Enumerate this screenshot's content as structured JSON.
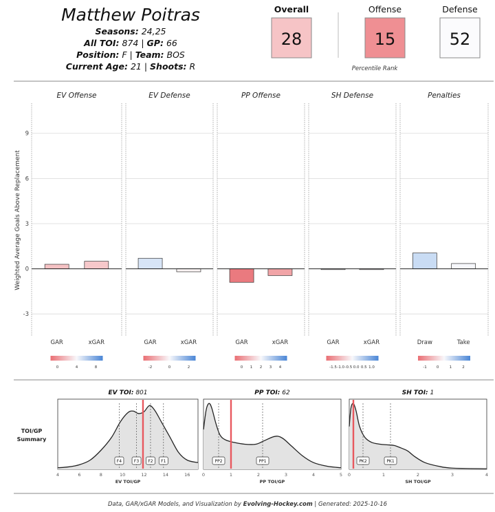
{
  "header": {
    "player_name": "Matthew Poitras",
    "lines": [
      [
        {
          "label": "Seasons:",
          "value": " 24,25"
        }
      ],
      [
        {
          "label": "All TOI:",
          "value": " 874 | "
        },
        {
          "label": "GP:",
          "value": " 66"
        }
      ],
      [
        {
          "label": "Position:",
          "value": " F | "
        },
        {
          "label": "Team:",
          "value": " BOS"
        }
      ],
      [
        {
          "label": "Current Age:",
          "value": " 21 | "
        },
        {
          "label": "Shoots:",
          "value": " R"
        }
      ]
    ]
  },
  "percentiles": {
    "caption": "Percentile Rank",
    "boxes": [
      {
        "label": "Overall",
        "value": "28",
        "bold": true,
        "fill": "#f6c4c6"
      },
      {
        "label": "Offense",
        "value": "15",
        "bold": false,
        "fill": "#ef8f93"
      },
      {
        "label": "Defense",
        "value": "52",
        "bold": false,
        "fill": "#fbfbfd"
      }
    ]
  },
  "chart_data": [
    {
      "type": "bar",
      "ylabel": "Weighted Average Goals Above Replacement",
      "ylim": [
        -4.5,
        11
      ],
      "yticks": [
        -3,
        0,
        3,
        6,
        9
      ],
      "panels": [
        {
          "title": "EV Offense",
          "categories": [
            "GAR",
            "xGAR"
          ],
          "values": [
            0.3,
            0.5
          ],
          "legend": {
            "ticks": [
              "0",
              "4",
              "8"
            ]
          }
        },
        {
          "title": "EV Defense",
          "categories": [
            "GAR",
            "xGAR"
          ],
          "values": [
            0.7,
            -0.2
          ],
          "legend": {
            "ticks": [
              "-2",
              "0",
              "2"
            ]
          }
        },
        {
          "title": "PP Offense",
          "categories": [
            "GAR",
            "xGAR"
          ],
          "values": [
            -0.9,
            -0.45
          ],
          "legend": {
            "ticks": [
              "0",
              "1",
              "2",
              "3",
              "4"
            ]
          }
        },
        {
          "title": "SH Defense",
          "categories": [
            "GAR",
            "xGAR"
          ],
          "values": [
            -0.02,
            -0.02
          ],
          "legend": {
            "ticks": [
              "-1.5",
              "-1.0",
              "-0.5",
              "0.0",
              "0.5",
              "1.0"
            ]
          }
        },
        {
          "title": "Penalties",
          "categories": [
            "Draw",
            "Take"
          ],
          "values": [
            1.05,
            0.35
          ],
          "legend": {
            "ticks": [
              "-1",
              "0",
              "1",
              "2"
            ]
          }
        }
      ]
    },
    {
      "type": "area",
      "side_title": [
        "TOI/GP",
        "Summary"
      ],
      "panels": [
        {
          "title_bold": "EV TOI:",
          "title_rest": " 801",
          "xlabel": "EV TOI/GP",
          "xlim": [
            4,
            17
          ],
          "xticks": [
            4,
            6,
            8,
            10,
            12,
            14,
            16
          ],
          "player_value": 11.9,
          "markers": [
            {
              "label": "F4",
              "x": 9.7
            },
            {
              "label": "F3",
              "x": 11.3
            },
            {
              "label": "F2",
              "x": 12.6
            },
            {
              "label": "F1",
              "x": 13.8
            }
          ],
          "density": [
            [
              4,
              0.05
            ],
            [
              5,
              0.08
            ],
            [
              6,
              0.15
            ],
            [
              7,
              0.3
            ],
            [
              8,
              0.62
            ],
            [
              9,
              1.05
            ],
            [
              9.8,
              1.55
            ],
            [
              10.5,
              1.85
            ],
            [
              11,
              1.9
            ],
            [
              11.5,
              1.82
            ],
            [
              12,
              1.88
            ],
            [
              12.5,
              2.08
            ],
            [
              13,
              1.92
            ],
            [
              13.6,
              1.55
            ],
            [
              14.4,
              1.05
            ],
            [
              15.2,
              0.55
            ],
            [
              16,
              0.3
            ],
            [
              17,
              0.22
            ]
          ]
        },
        {
          "title_bold": "PP TOI:",
          "title_rest": " 62",
          "xlabel": "PP TOI/GP",
          "xlim": [
            0,
            5
          ],
          "xticks": [
            0,
            1,
            2,
            3,
            4,
            5
          ],
          "player_value": 1.0,
          "markers": [
            {
              "label": "PP2",
              "x": 0.55
            },
            {
              "label": "PP1",
              "x": 2.15
            }
          ],
          "density": [
            [
              0,
              1.3
            ],
            [
              0.1,
              1.95
            ],
            [
              0.2,
              2.15
            ],
            [
              0.3,
              2.0
            ],
            [
              0.45,
              1.5
            ],
            [
              0.6,
              1.12
            ],
            [
              0.8,
              0.96
            ],
            [
              1.1,
              0.88
            ],
            [
              1.5,
              0.82
            ],
            [
              1.9,
              0.82
            ],
            [
              2.2,
              0.93
            ],
            [
              2.5,
              1.05
            ],
            [
              2.7,
              1.08
            ],
            [
              2.9,
              1.0
            ],
            [
              3.2,
              0.76
            ],
            [
              3.6,
              0.44
            ],
            [
              4.0,
              0.22
            ],
            [
              4.5,
              0.1
            ],
            [
              5,
              0.05
            ]
          ]
        },
        {
          "title_bold": "SH TOI:",
          "title_rest": " 1",
          "xlabel": "SH TOI/GP",
          "xlim": [
            0,
            4
          ],
          "xticks": [
            0,
            1,
            2,
            3,
            4
          ],
          "player_value": 0.12,
          "markers": [
            {
              "label": "PK2",
              "x": 0.4
            },
            {
              "label": "PK1",
              "x": 1.2
            }
          ],
          "density": [
            [
              0,
              1.4
            ],
            [
              0.05,
              2.0
            ],
            [
              0.12,
              2.15
            ],
            [
              0.2,
              1.9
            ],
            [
              0.3,
              1.4
            ],
            [
              0.45,
              1.05
            ],
            [
              0.65,
              0.88
            ],
            [
              0.9,
              0.82
            ],
            [
              1.1,
              0.8
            ],
            [
              1.3,
              0.78
            ],
            [
              1.5,
              0.7
            ],
            [
              1.7,
              0.6
            ],
            [
              1.9,
              0.42
            ],
            [
              2.2,
              0.22
            ],
            [
              2.6,
              0.1
            ],
            [
              3.0,
              0.04
            ],
            [
              4,
              0.02
            ]
          ]
        }
      ]
    }
  ],
  "footer": {
    "prefix": "Data, GAR/xGAR Models, and Visualization by ",
    "site": "Evolving-Hockey.com",
    "suffix": " | Generated: 2025-10-16"
  },
  "colors": {
    "neg_bar": "#ec7f83",
    "pos_bar": "#b9cff0",
    "player_line": "#e8585e",
    "density_fill": "#e3e3e3",
    "grid": "#d9d9d9"
  }
}
